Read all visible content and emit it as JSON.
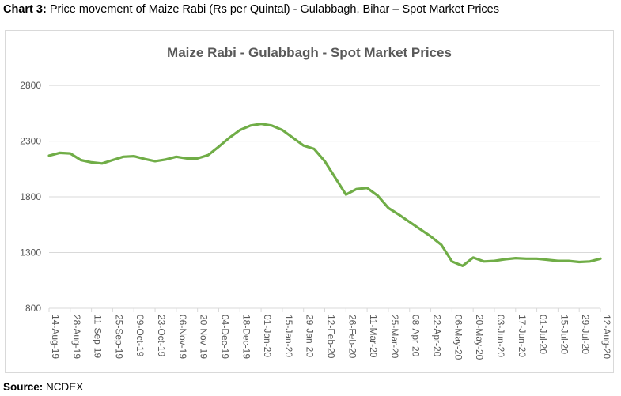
{
  "caption": {
    "lead": "Chart 3:",
    "text": "Price movement of Maize Rabi (Rs per Quintal) - Gulabbagh, Bihar – Spot Market Prices"
  },
  "source": {
    "lead": "Source:",
    "text": "NCDEX"
  },
  "colors": {
    "line": "#70ad47",
    "grid": "#d9d9d9",
    "axis_text": "#595959",
    "title_text": "#595959"
  },
  "chart_data": {
    "type": "line",
    "title": "Maize Rabi - Gulabbagh - Spot  Market Prices",
    "xlabel": "",
    "ylabel": "",
    "ylim": [
      800,
      2900
    ],
    "yticks": [
      800,
      1300,
      1800,
      2300,
      2800
    ],
    "grid": true,
    "legend": "none",
    "categories": [
      "14-Aug-19",
      "28-Aug-19",
      "11-Sep-19",
      "25-Sep-19",
      "09-Oct-19",
      "23-Oct-19",
      "06-Nov-19",
      "20-Nov-19",
      "04-Dec-19",
      "18-Dec-19",
      "01-Jan-20",
      "15-Jan-20",
      "29-Jan-20",
      "12-Feb-20",
      "26-Feb-20",
      "11-Mar-20",
      "25-Mar-20",
      "08-Apr-20",
      "22-Apr-20",
      "06-May-20",
      "20-May-20",
      "03-Jun-20",
      "17-Jun-20",
      "01-Jul-20",
      "15-Jul-20",
      "29-Jul-20",
      "12-Aug-20"
    ],
    "x": [
      "14-Aug-19",
      "21-Aug-19",
      "28-Aug-19",
      "04-Sep-19",
      "11-Sep-19",
      "18-Sep-19",
      "25-Sep-19",
      "02-Oct-19",
      "09-Oct-19",
      "16-Oct-19",
      "23-Oct-19",
      "30-Oct-19",
      "06-Nov-19",
      "13-Nov-19",
      "20-Nov-19",
      "27-Nov-19",
      "04-Dec-19",
      "11-Dec-19",
      "18-Dec-19",
      "25-Dec-19",
      "01-Jan-20",
      "08-Jan-20",
      "15-Jan-20",
      "22-Jan-20",
      "29-Jan-20",
      "05-Feb-20",
      "12-Feb-20",
      "19-Feb-20",
      "26-Feb-20",
      "04-Mar-20",
      "11-Mar-20",
      "18-Mar-20",
      "25-Mar-20",
      "01-Apr-20",
      "08-Apr-20",
      "15-Apr-20",
      "22-Apr-20",
      "29-Apr-20",
      "06-May-20",
      "13-May-20",
      "20-May-20",
      "27-May-20",
      "03-Jun-20",
      "10-Jun-20",
      "17-Jun-20",
      "24-Jun-20",
      "01-Jul-20",
      "08-Jul-20",
      "15-Jul-20",
      "22-Jul-20",
      "29-Jul-20",
      "05-Aug-20",
      "12-Aug-20"
    ],
    "series": [
      {
        "values": [
          2170,
          2195,
          2190,
          2130,
          2110,
          2100,
          2130,
          2160,
          2165,
          2140,
          2120,
          2135,
          2160,
          2145,
          2145,
          2175,
          2250,
          2330,
          2400,
          2440,
          2455,
          2440,
          2400,
          2330,
          2260,
          2230,
          2120,
          1970,
          1820,
          1870,
          1880,
          1810,
          1700,
          1640,
          1575,
          1510,
          1445,
          1370,
          1220,
          1180,
          1255,
          1220,
          1225,
          1240,
          1250,
          1245,
          1245,
          1235,
          1225,
          1225,
          1215,
          1220,
          1245
        ]
      }
    ]
  }
}
